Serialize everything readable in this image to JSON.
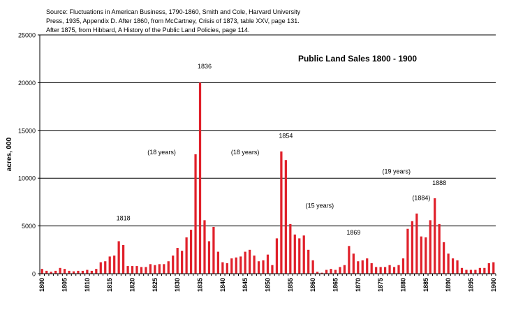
{
  "source_note": [
    "Source: Fluctuations in American Business, 1790-1860, Smith and Cole, Harvard University",
    "Press, 1935,  Appendix D.  After 1860, from McCartney, Crisis of 1873, table XXV, page 131.",
    "After 1875, from Hibbard, A History of the Public Land Policies, page 114."
  ],
  "chart_data": {
    "type": "bar",
    "title": "Public Land Sales 1800 - 1900",
    "ylabel": "acres, 000",
    "xlabel": "",
    "ylim": [
      0,
      25000
    ],
    "yticks": [
      0,
      5000,
      10000,
      15000,
      20000,
      25000
    ],
    "xtick_labels": [
      "1800",
      "1805",
      "1810",
      "1815",
      "1820",
      "1825",
      "1830",
      "1835",
      "1840",
      "1845",
      "1850",
      "1855",
      "1860",
      "1865",
      "1870",
      "1875",
      "1880",
      "1885",
      "1890",
      "1895",
      "1900"
    ],
    "grid": "horizontal",
    "bar_color": "#e0202a",
    "x": [
      1800,
      1801,
      1802,
      1803,
      1804,
      1805,
      1806,
      1807,
      1808,
      1809,
      1810,
      1811,
      1812,
      1813,
      1814,
      1815,
      1816,
      1817,
      1818,
      1819,
      1820,
      1821,
      1822,
      1823,
      1824,
      1825,
      1826,
      1827,
      1828,
      1829,
      1830,
      1831,
      1832,
      1833,
      1834,
      1835,
      1836,
      1837,
      1838,
      1839,
      1840,
      1841,
      1842,
      1843,
      1844,
      1845,
      1846,
      1847,
      1848,
      1849,
      1850,
      1851,
      1852,
      1853,
      1854,
      1855,
      1856,
      1857,
      1858,
      1859,
      1860,
      1861,
      1862,
      1863,
      1864,
      1865,
      1866,
      1867,
      1868,
      1869,
      1870,
      1871,
      1872,
      1873,
      1874,
      1875,
      1876,
      1877,
      1878,
      1879,
      1880,
      1881,
      1882,
      1883,
      1884,
      1885,
      1886,
      1887,
      1888,
      1889,
      1890,
      1891,
      1892,
      1893,
      1894,
      1895,
      1896,
      1897,
      1898,
      1899,
      1900
    ],
    "values": [
      500,
      300,
      200,
      300,
      600,
      500,
      300,
      250,
      300,
      300,
      400,
      300,
      500,
      1200,
      1300,
      1800,
      1900,
      3400,
      3000,
      800,
      800,
      800,
      700,
      700,
      1000,
      900,
      1000,
      1000,
      1300,
      1900,
      2700,
      2400,
      3800,
      4600,
      12500,
      20000,
      5600,
      3400,
      4900,
      2300,
      1200,
      1100,
      1600,
      1700,
      1800,
      2300,
      2500,
      1900,
      1300,
      1400,
      2000,
      900,
      3700,
      12800,
      11900,
      5200,
      4100,
      3700,
      4000,
      2500,
      1400,
      200,
      100,
      400,
      500,
      400,
      700,
      900,
      2900,
      2100,
      1300,
      1400,
      1600,
      1100,
      700,
      700,
      700,
      900,
      700,
      900,
      1600,
      4700,
      5500,
      6300,
      3900,
      3800,
      5600,
      7900,
      5200,
      3300,
      2100,
      1600,
      1400,
      600,
      400,
      400,
      400,
      600,
      600,
      1100,
      1200
    ],
    "annotations": [
      {
        "text": "1818",
        "x": 1818,
        "y": 5600
      },
      {
        "text": "1836",
        "x": 1836,
        "y": 21500
      },
      {
        "text": "1854",
        "x": 1854,
        "y": 14200
      },
      {
        "text": "1869",
        "x": 1869,
        "y": 4100
      },
      {
        "text": "1888",
        "x": 1888,
        "y": 9300
      },
      {
        "text": "(18 years)",
        "x": 1826.5,
        "y": 12500
      },
      {
        "text": "(18 years)",
        "x": 1845,
        "y": 12500
      },
      {
        "text": "(15 years)",
        "x": 1861.5,
        "y": 6900
      },
      {
        "text": "(19 years)",
        "x": 1878.5,
        "y": 10500
      },
      {
        "text": "(1884)",
        "x": 1884,
        "y": 7700
      }
    ]
  }
}
